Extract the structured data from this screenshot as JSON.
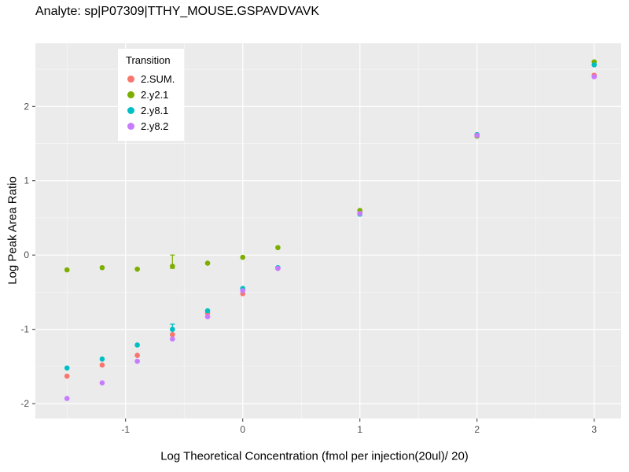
{
  "title": "Analyte: sp|P07309|TTHY_MOUSE.GSPAVDVAVK",
  "chart_data": {
    "type": "scatter",
    "title": "Analyte: sp|P07309|TTHY_MOUSE.GSPAVDVAVK",
    "xlabel": "Log Theoretical Concentration (fmol per injection(20ul)/ 20)",
    "ylabel": "Log Peak Area Ratio",
    "x_ticks": [
      -1,
      0,
      1,
      2,
      3
    ],
    "y_ticks": [
      -2,
      -1,
      0,
      1,
      2
    ],
    "xlim": [
      -1.77,
      3.23
    ],
    "ylim": [
      -2.2,
      2.85
    ],
    "grid": "on",
    "panel_bg": "#EBEBEB",
    "grid_major_color": "#FFFFFF",
    "grid_minor_color": "#F5F5F5",
    "legend": {
      "title": "Transition",
      "position": "top-left-inside"
    },
    "x": [
      -1.5,
      -1.2,
      -0.9,
      -0.6,
      -0.3,
      0,
      0.3,
      1,
      2,
      3
    ],
    "series": [
      {
        "name": "2.SUM.",
        "color": "#F8766D",
        "values": [
          -1.63,
          -1.48,
          -1.35,
          -1.07,
          -0.78,
          -0.52,
          -0.18,
          0.57,
          1.62,
          2.42
        ]
      },
      {
        "name": "2.y2.1",
        "color": "#7CAE00",
        "values": [
          -0.2,
          -0.17,
          -0.19,
          -0.15,
          -0.11,
          -0.03,
          0.1,
          0.6,
          1.6,
          2.6
        ]
      },
      {
        "name": "2.y8.1",
        "color": "#00BFC4",
        "values": [
          -1.52,
          -1.4,
          -1.21,
          -1.0,
          -0.75,
          -0.45,
          -0.17,
          0.55,
          1.62,
          2.56
        ]
      },
      {
        "name": "2.y8.2",
        "color": "#C77CFF",
        "values": [
          -1.93,
          -1.72,
          -1.43,
          -1.13,
          -0.83,
          -0.48,
          -0.18,
          0.56,
          1.61,
          2.4
        ]
      }
    ],
    "error_bars": [
      {
        "series": "2.y2.1",
        "x": -0.6,
        "ymin": -0.18,
        "ymax": 0.0
      },
      {
        "series": "2.y8.1",
        "x": -0.6,
        "ymin": -1.08,
        "ymax": -0.93
      }
    ]
  }
}
